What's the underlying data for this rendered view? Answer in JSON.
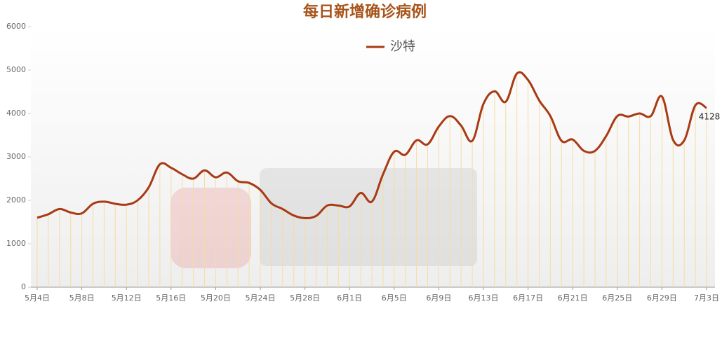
{
  "chart_data": {
    "type": "line",
    "title": "每日新增确诊病例",
    "categories": [
      "5月4日",
      null,
      null,
      null,
      "5月8日",
      null,
      null,
      null,
      "5月12日",
      null,
      null,
      null,
      "5月16日",
      null,
      null,
      null,
      "5月20日",
      null,
      null,
      null,
      "5月24日",
      null,
      null,
      null,
      "5月28日",
      null,
      null,
      null,
      "6月1日",
      null,
      null,
      null,
      "6月5日",
      null,
      null,
      null,
      "6月9日",
      null,
      null,
      null,
      "6月13日",
      null,
      null,
      null,
      "6月17日",
      null,
      null,
      null,
      "6月21日",
      null,
      null,
      null,
      "6月25日",
      null,
      null,
      null,
      "6月29日",
      null,
      null,
      null,
      "7月3日"
    ],
    "series": [
      {
        "name": "沙特",
        "color": "#a83a14",
        "values": [
          1600,
          1680,
          1800,
          1720,
          1700,
          1920,
          1970,
          1920,
          1900,
          2000,
          2300,
          2830,
          2750,
          2600,
          2500,
          2690,
          2530,
          2640,
          2440,
          2400,
          2240,
          1930,
          1800,
          1650,
          1590,
          1640,
          1880,
          1880,
          1860,
          2170,
          1970,
          2600,
          3120,
          3050,
          3380,
          3290,
          3700,
          3940,
          3720,
          3370,
          4220,
          4510,
          4270,
          4920,
          4770,
          4300,
          3940,
          3370,
          3400,
          3140,
          3140,
          3480,
          3940,
          3930,
          4000,
          3940,
          4390,
          3390,
          3380,
          4190,
          4128
        ]
      }
    ],
    "ylim": [
      0,
      6000
    ],
    "yticks": [
      0,
      1000,
      2000,
      3000,
      4000,
      5000,
      6000
    ],
    "drop_lines_color": "#f7dca0"
  }
}
